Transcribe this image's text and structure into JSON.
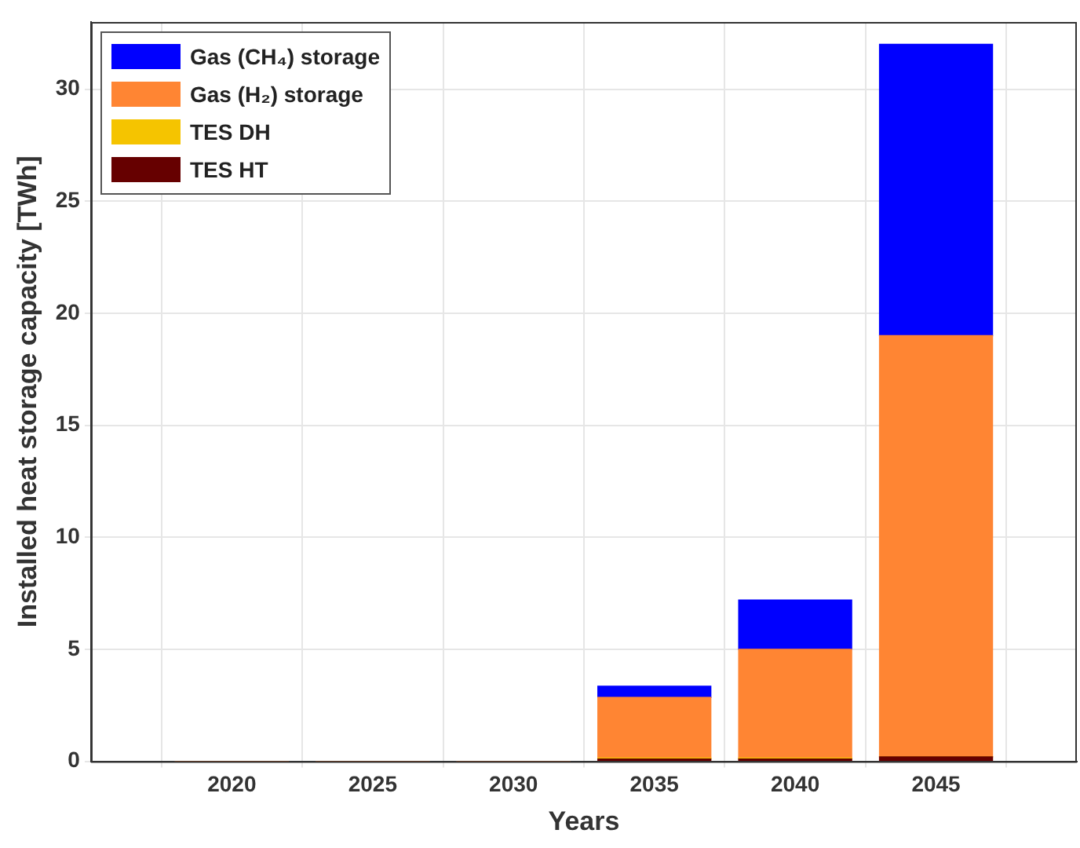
{
  "chart_data": {
    "type": "bar",
    "stacked": true,
    "xlabel": "Years",
    "ylabel": "Installed heat storage capacity [TWh]",
    "x": [
      2020,
      2025,
      2030,
      2035,
      2040,
      2045
    ],
    "series": [
      {
        "name": "TES HT",
        "color": "#660000",
        "values": [
          0,
          0,
          0,
          0.1,
          0.1,
          0.2
        ]
      },
      {
        "name": "TES DH",
        "color": "#f5c400",
        "values": [
          0,
          0,
          0,
          0.05,
          0.05,
          0
        ]
      },
      {
        "name": "Gas (H₂) storage",
        "color": "#ff8533",
        "values": [
          0,
          0,
          0,
          2.7,
          4.85,
          18.8
        ]
      },
      {
        "name": "Gas (CH₄) storage",
        "color": "#0000ff",
        "values": [
          0,
          0,
          0,
          0.5,
          2.2,
          13
        ]
      }
    ],
    "xlim": [
      2015,
      2050
    ],
    "xticks": [
      2020,
      2025,
      2030,
      2035,
      2040,
      2045
    ],
    "ylim": [
      0,
      33
    ],
    "yticks": [
      0,
      5,
      10,
      15,
      20,
      25,
      30
    ],
    "grid": true,
    "legend": "top left"
  }
}
